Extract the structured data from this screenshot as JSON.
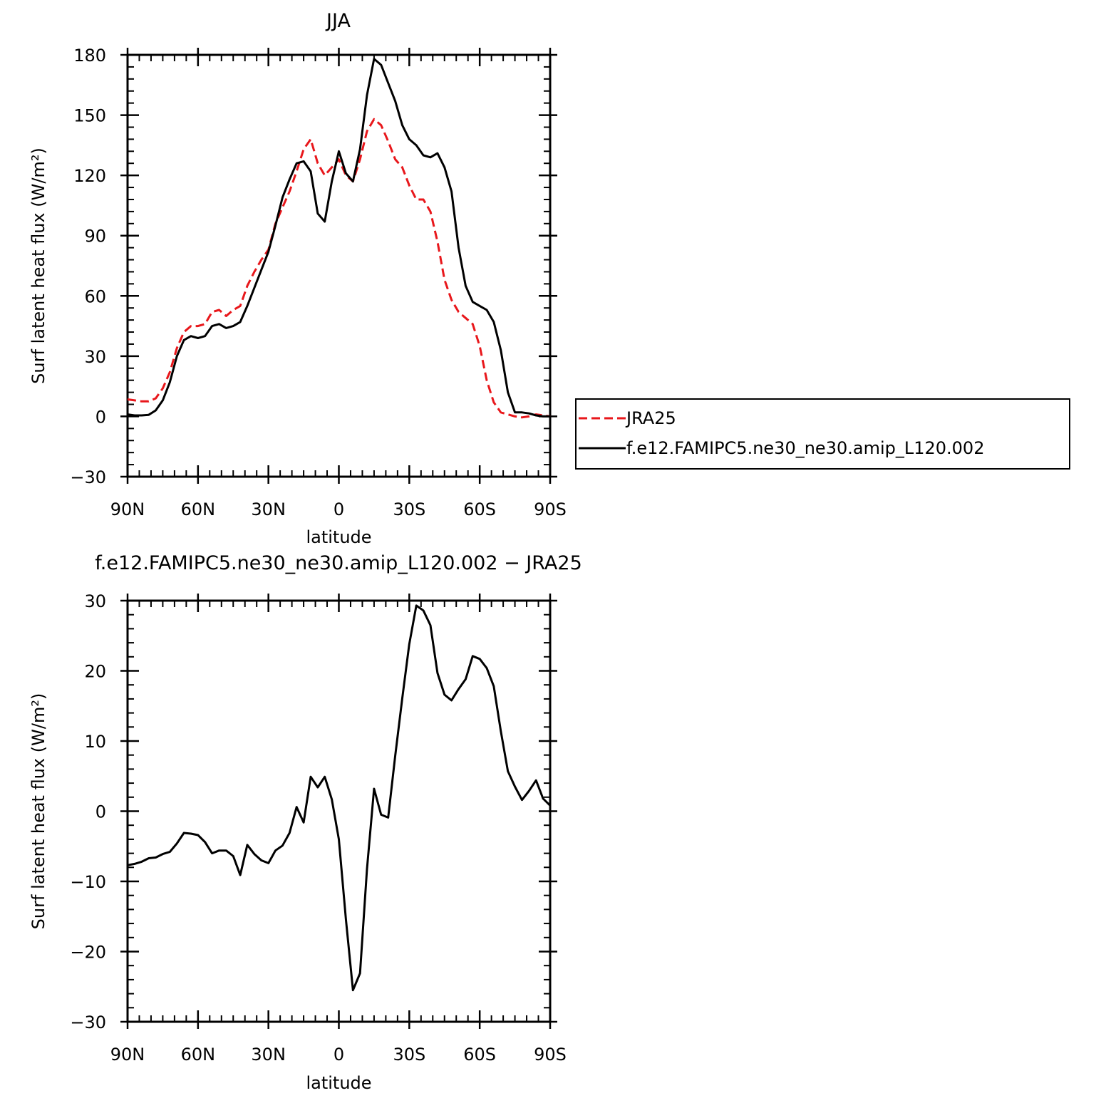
{
  "chart_data": [
    {
      "type": "line",
      "title": "JJA",
      "xlabel": "latitude",
      "ylabel": "Surf latent heat flux (W/m²)",
      "xlim": [
        90,
        -90
      ],
      "ylim": [
        -30,
        180
      ],
      "xticks": [
        90,
        60,
        30,
        0,
        -30,
        -60,
        -90
      ],
      "xtick_labels": [
        "90N",
        "60N",
        "30N",
        "0",
        "30S",
        "60S",
        "90S"
      ],
      "yticks": [
        -30,
        0,
        30,
        60,
        90,
        120,
        150,
        180
      ],
      "ytick_labels": [
        "−30",
        "0",
        "30",
        "60",
        "90",
        "120",
        "150",
        "180"
      ],
      "legend_position": "right",
      "x": [
        90,
        87,
        84,
        81,
        78,
        75,
        72,
        69,
        66,
        63,
        60,
        57,
        54,
        51,
        48,
        45,
        42,
        39,
        36,
        33,
        30,
        27,
        24,
        21,
        18,
        15,
        12,
        9,
        6,
        3,
        0,
        -3,
        -6,
        -9,
        -12,
        -15,
        -18,
        -21,
        -24,
        -27,
        -30,
        -33,
        -36,
        -39,
        -42,
        -45,
        -48,
        -51,
        -54,
        -57,
        -60,
        -63,
        -66,
        -69,
        -72,
        -75,
        -78,
        -81,
        -84,
        -87,
        -90
      ],
      "series": [
        {
          "name": "JRA25",
          "color": "#e8171b",
          "dash": "dashed",
          "values": [
            8.5,
            8,
            7.5,
            7.5,
            9,
            14,
            22,
            34,
            42,
            45,
            45,
            46,
            52,
            53,
            50,
            53,
            55,
            65,
            72,
            78,
            83,
            96,
            104,
            112,
            122,
            133,
            138,
            126,
            120,
            124,
            128,
            120,
            117,
            128,
            142,
            148,
            145,
            137,
            128,
            124,
            115,
            108,
            108,
            102,
            87,
            68,
            58,
            52,
            49,
            46,
            35,
            18,
            7,
            2,
            1,
            0,
            -0.5,
            0,
            1,
            0.5,
            0
          ]
        },
        {
          "name": "f.e12.FAMIPC5.ne30_ne30.amip_L120.002",
          "color": "#000000",
          "dash": "solid",
          "values": [
            1,
            0.5,
            0.5,
            0.8,
            3,
            8,
            17,
            30,
            38,
            40,
            39,
            40,
            45,
            46,
            44,
            45,
            47,
            55,
            64,
            73,
            82,
            95,
            109,
            118,
            126,
            127,
            122,
            101,
            97,
            117,
            132,
            121,
            117,
            133,
            160,
            178,
            175,
            166,
            157,
            145,
            138,
            135,
            130,
            129,
            131,
            124,
            112,
            84,
            65,
            57,
            55,
            53,
            47,
            33,
            12,
            2,
            2,
            1.5,
            0.5,
            0,
            0
          ]
        }
      ]
    },
    {
      "type": "line",
      "title": "f.e12.FAMIPC5.ne30_ne30.amip_L120.002 − JRA25",
      "xlabel": "latitude",
      "ylabel": "Surf latent heat flux (W/m²)",
      "xlim": [
        90,
        -90
      ],
      "ylim": [
        -30,
        30
      ],
      "xticks": [
        90,
        60,
        30,
        0,
        -30,
        -60,
        -90
      ],
      "xtick_labels": [
        "90N",
        "60N",
        "30N",
        "0",
        "30S",
        "60S",
        "90S"
      ],
      "yticks": [
        -30,
        -20,
        -10,
        0,
        10,
        20,
        30
      ],
      "ytick_labels": [
        "−30",
        "−20",
        "−10",
        "0",
        "10",
        "20",
        "30"
      ],
      "x": [
        90,
        87,
        84,
        81,
        78,
        75,
        72,
        69,
        66,
        63,
        60,
        57,
        54,
        51,
        48,
        45,
        42,
        39,
        36,
        33,
        30,
        27,
        24,
        21,
        18,
        15,
        12,
        9,
        6,
        3,
        0,
        -3,
        -6,
        -9,
        -12,
        -15,
        -18,
        -21,
        -24,
        -27,
        -30,
        -33,
        -36,
        -39,
        -42,
        -45,
        -48,
        -51,
        -54,
        -57,
        -60,
        -63,
        -66,
        -69,
        -72,
        -75,
        -78,
        -81,
        -84,
        -87,
        -90
      ],
      "series": [
        {
          "color": "#000000",
          "dash": "solid",
          "values": [
            -7.7,
            -7.5,
            -7.2,
            -6.7,
            -6.6,
            -6.1,
            -5.8,
            -4.6,
            -3.1,
            -3.2,
            -3.4,
            -4.4,
            -6,
            -5.6,
            -5.6,
            -6.4,
            -9.1,
            -4.8,
            -6.1,
            -7,
            -7.4,
            -5.6,
            -4.9,
            -3.1,
            0.6,
            -1.6,
            4.9,
            3.4,
            4.9,
            1.7,
            -4,
            -15.4,
            -25.5,
            -23.1,
            -8.2,
            3.2,
            -0.5,
            -0.9,
            7.9,
            16.1,
            23.8,
            29.3,
            28.6,
            26.5,
            19.7,
            16.6,
            15.8,
            17.4,
            18.8,
            22.1,
            21.7,
            20.4,
            17.8,
            11.4,
            5.7,
            3.5,
            1.6,
            2.9,
            4.4,
            1.8,
            0.8
          ]
        }
      ]
    }
  ]
}
